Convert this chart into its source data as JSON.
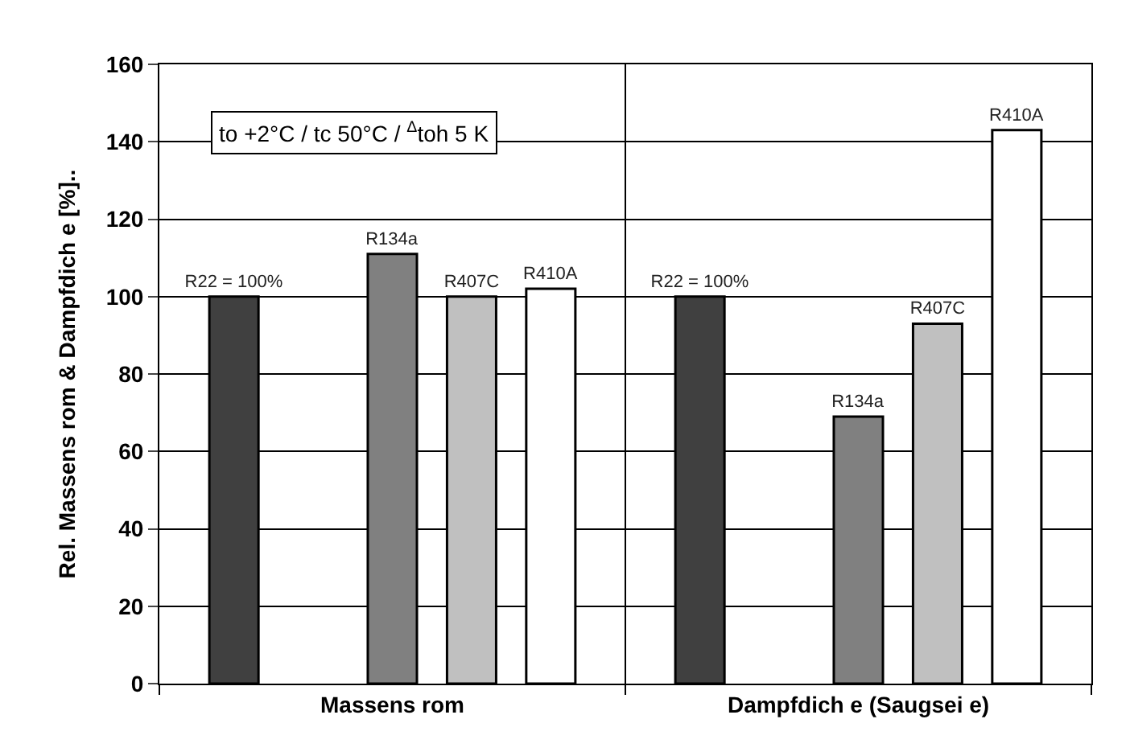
{
  "chart_data": {
    "type": "bar",
    "ylabel": "Rel. Massens rom & Dampfdich e [%]..",
    "categories": [
      "Massens rom",
      "Dampfdich e (Saugsei e)"
    ],
    "series": [
      {
        "name": "R22 = 100%",
        "color": "#404040",
        "values": [
          100,
          100
        ]
      },
      {
        "name": "R134a",
        "color": "#808080",
        "values": [
          111,
          69
        ]
      },
      {
        "name": "R407C",
        "color": "#c0c0c0",
        "values": [
          100,
          93
        ]
      },
      {
        "name": "R410A",
        "color": "#ffffff",
        "values": [
          102,
          143
        ]
      }
    ],
    "ylim": [
      0,
      160
    ],
    "yticks": [
      0,
      20,
      40,
      60,
      80,
      100,
      120,
      140,
      160
    ],
    "grid": true,
    "legend": false,
    "annotations": [
      "to +2°C / tc 50°C / $^{Δ}$toh 5 K"
    ]
  }
}
